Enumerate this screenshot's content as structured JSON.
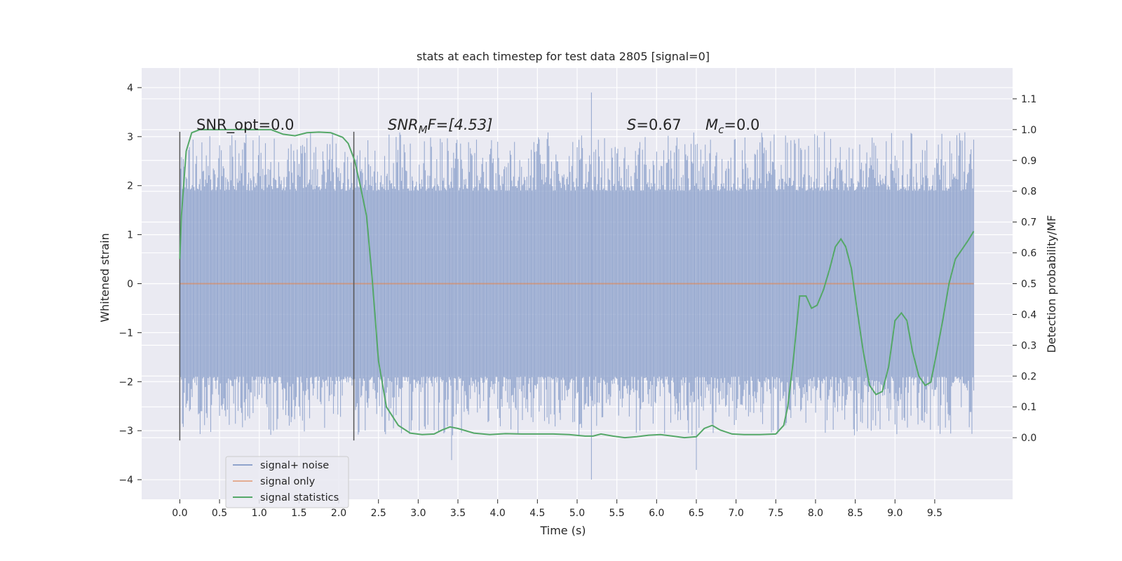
{
  "chart_data": {
    "type": "line",
    "title": "stats at each timestep for test data 2805 [signal=0]",
    "xlabel": "Time (s)",
    "ylabel": "Whitened strain",
    "y2label": "Detection probability/MF",
    "xlim": [
      -0.48,
      10.48
    ],
    "ylim": [
      -4.4,
      4.4
    ],
    "y2lim": [
      -0.2,
      1.2
    ],
    "xticks": [
      "0.0",
      "0.5",
      "1.0",
      "1.5",
      "2.0",
      "2.5",
      "3.0",
      "3.5",
      "4.0",
      "4.5",
      "5.0",
      "5.5",
      "6.0",
      "6.5",
      "7.0",
      "7.5",
      "8.0",
      "8.5",
      "9.0",
      "9.5"
    ],
    "xtick_values": [
      0,
      0.5,
      1,
      1.5,
      2,
      2.5,
      3,
      3.5,
      4,
      4.5,
      5,
      5.5,
      6,
      6.5,
      7,
      7.5,
      8,
      8.5,
      9,
      9.5
    ],
    "yticks": [
      "4",
      "3",
      "2",
      "1",
      "0",
      "−1",
      "−2",
      "−3",
      "−4"
    ],
    "ytick_values": [
      4,
      3,
      2,
      1,
      0,
      -1,
      -2,
      -3,
      -4
    ],
    "y2ticks": [
      "1.1",
      "1.0",
      "0.9",
      "0.8",
      "0.7",
      "0.6",
      "0.5",
      "0.4",
      "0.3",
      "0.2",
      "0.1",
      "0.0"
    ],
    "y2tick_values": [
      1.1,
      1.0,
      0.9,
      0.8,
      0.7,
      0.6,
      0.5,
      0.4,
      0.3,
      0.2,
      0.1,
      0.0
    ],
    "grid": true,
    "legend_position": "lower-left",
    "colors": {
      "noise": "#8fa3cc",
      "signal": "#dd8452",
      "stats": "#55a868",
      "background": "#eaeaf2",
      "vline": "#555555"
    },
    "series": [
      {
        "name": "signal+ noise",
        "axis": "left",
        "description_range": [
          -4.0,
          3.9
        ],
        "x_range": [
          0.0,
          9.99
        ],
        "typical_envelope": [
          -2.1,
          2.1
        ],
        "peaks_x": [
          5.18,
          5.18,
          3.42,
          6.5
        ],
        "peaks_y": [
          3.9,
          -4.0,
          -3.6,
          -3.8
        ]
      },
      {
        "name": "signal only",
        "axis": "left",
        "x": [
          0.0,
          9.99
        ],
        "y": [
          0.0,
          0.0
        ]
      },
      {
        "name": "signal statistics",
        "axis": "right",
        "x": [
          0.0,
          0.02,
          0.08,
          0.15,
          0.25,
          0.4,
          0.6,
          0.8,
          1.0,
          1.15,
          1.3,
          1.45,
          1.6,
          1.75,
          1.9,
          2.05,
          2.12,
          2.2,
          2.27,
          2.35,
          2.42,
          2.5,
          2.6,
          2.75,
          2.9,
          3.05,
          3.2,
          3.3,
          3.4,
          3.5,
          3.7,
          3.9,
          4.1,
          4.3,
          4.5,
          4.7,
          4.9,
          5.1,
          5.2,
          5.3,
          5.45,
          5.6,
          5.75,
          5.9,
          6.05,
          6.2,
          6.35,
          6.5,
          6.6,
          6.7,
          6.8,
          6.95,
          7.1,
          7.3,
          7.5,
          7.6,
          7.65,
          7.72,
          7.8,
          7.88,
          7.95,
          8.02,
          8.1,
          8.18,
          8.25,
          8.32,
          8.38,
          8.45,
          8.52,
          8.6,
          8.68,
          8.76,
          8.84,
          8.92,
          9.0,
          9.08,
          9.15,
          9.22,
          9.3,
          9.38,
          9.45,
          9.52,
          9.6,
          9.68,
          9.76,
          9.84,
          9.92,
          9.99
        ],
        "y": [
          0.58,
          0.72,
          0.93,
          0.99,
          1.0,
          1.0,
          1.0,
          1.0,
          1.0,
          1.0,
          0.985,
          0.98,
          0.99,
          0.992,
          0.99,
          0.975,
          0.955,
          0.9,
          0.82,
          0.72,
          0.52,
          0.25,
          0.1,
          0.04,
          0.015,
          0.01,
          0.012,
          0.025,
          0.035,
          0.03,
          0.015,
          0.01,
          0.013,
          0.012,
          0.012,
          0.012,
          0.01,
          0.005,
          0.005,
          0.012,
          0.005,
          0.0,
          0.003,
          0.008,
          0.01,
          0.005,
          0.0,
          0.003,
          0.03,
          0.04,
          0.025,
          0.012,
          0.01,
          0.01,
          0.012,
          0.04,
          0.1,
          0.25,
          0.46,
          0.46,
          0.42,
          0.43,
          0.48,
          0.55,
          0.62,
          0.645,
          0.62,
          0.55,
          0.42,
          0.28,
          0.17,
          0.14,
          0.15,
          0.23,
          0.38,
          0.405,
          0.38,
          0.28,
          0.2,
          0.17,
          0.18,
          0.27,
          0.38,
          0.5,
          0.58,
          0.61,
          0.64,
          0.67
        ]
      }
    ],
    "vlines_x": [
      0.0,
      2.19
    ],
    "vlines_range": [
      -3.2,
      3.1
    ],
    "annotations": [
      {
        "key": "snr_opt",
        "x": 0.2,
        "text": "SNR_opt=0.0"
      },
      {
        "key": "snr_mf",
        "x": 2.6,
        "text": "SNR_MF=[4.53]"
      },
      {
        "key": "s",
        "x": 5.6,
        "text": "S=0.67"
      },
      {
        "key": "mc",
        "x": 6.6,
        "text": "M_c=0.0"
      }
    ],
    "annotation_texts": {
      "snr_opt": "SNR_opt=0.0",
      "snr_mf_main": "SNR",
      "snr_mf_sub": "M",
      "snr_mf_rest": "F=[4.53]",
      "s_main": "S",
      "s_rest": "=0.67",
      "mc_main": "M",
      "mc_sub": "c",
      "mc_rest": "=0.0"
    },
    "legend": [
      "signal+ noise",
      "signal only",
      "signal statistics"
    ]
  }
}
